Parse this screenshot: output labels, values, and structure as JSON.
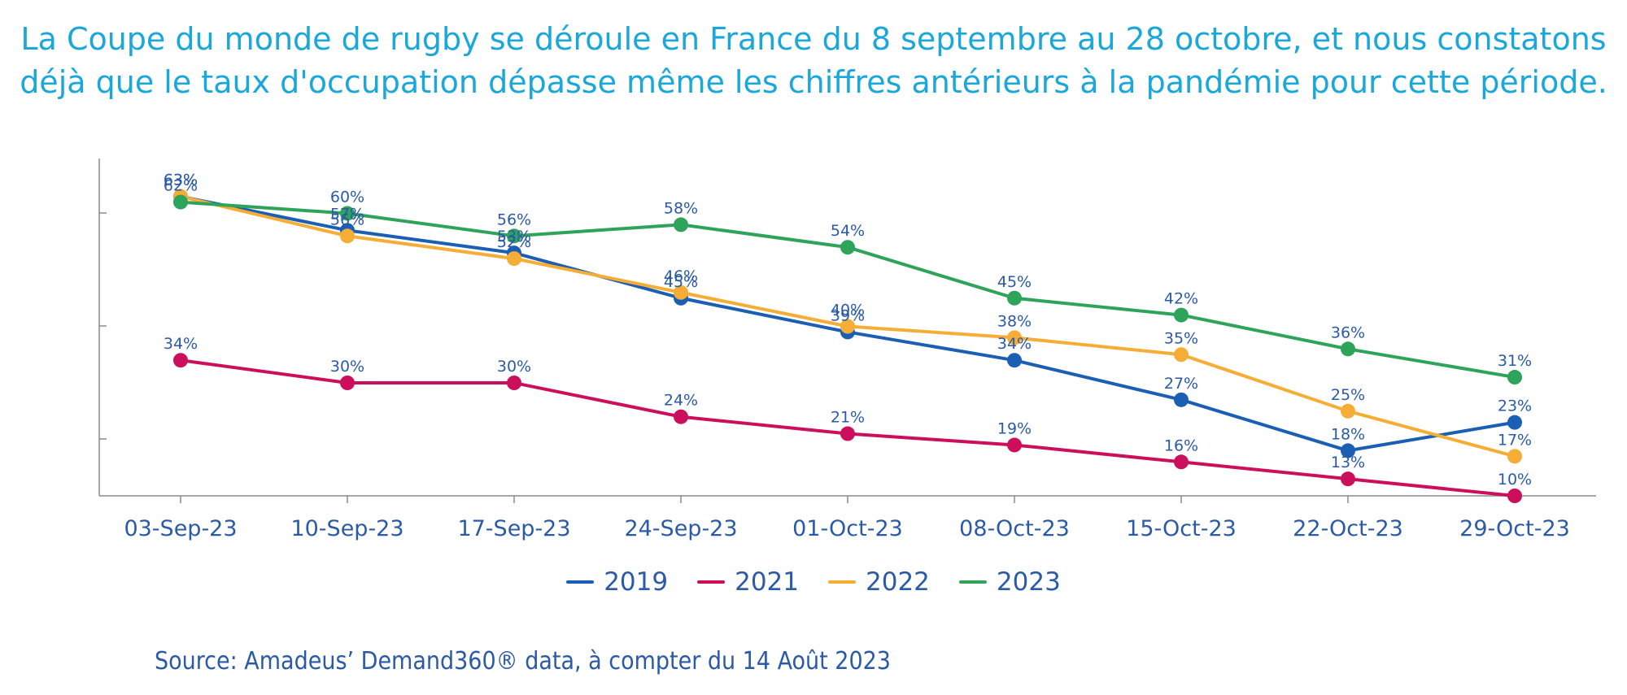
{
  "header": {
    "line1": "La Coupe du monde de rugby se déroule en France du 8 septembre au 28 octobre, et nous constatons",
    "line2": "déjà que le taux d'occupation dépasse même les chiffres antérieurs à la pandémie pour cette période."
  },
  "source": "Source: Amadeus’ Demand360® data, à compter du 14 Août 2023",
  "chart_data": {
    "type": "line",
    "title": "",
    "xlabel": "",
    "ylabel": "",
    "ylim": [
      10,
      68
    ],
    "categories": [
      "03-Sep-23",
      "10-Sep-23",
      "17-Sep-23",
      "24-Sep-23",
      "01-Oct-23",
      "08-Oct-23",
      "15-Oct-23",
      "22-Oct-23",
      "29-Oct-23"
    ],
    "legend_position": "bottom",
    "series": [
      {
        "name": "2019",
        "color": "#1b5fb4",
        "values": [
          63,
          57,
          53,
          45,
          39,
          34,
          27,
          18,
          23
        ]
      },
      {
        "name": "2021",
        "color": "#cc0f5c",
        "values": [
          34,
          30,
          30,
          24,
          21,
          19,
          16,
          13,
          10
        ]
      },
      {
        "name": "2022",
        "color": "#f5ad35",
        "values": [
          63,
          56,
          52,
          46,
          40,
          38,
          35,
          25,
          17
        ]
      },
      {
        "name": "2023",
        "color": "#2ea35a",
        "values": [
          62,
          60,
          56,
          58,
          54,
          45,
          42,
          36,
          31
        ]
      }
    ]
  }
}
